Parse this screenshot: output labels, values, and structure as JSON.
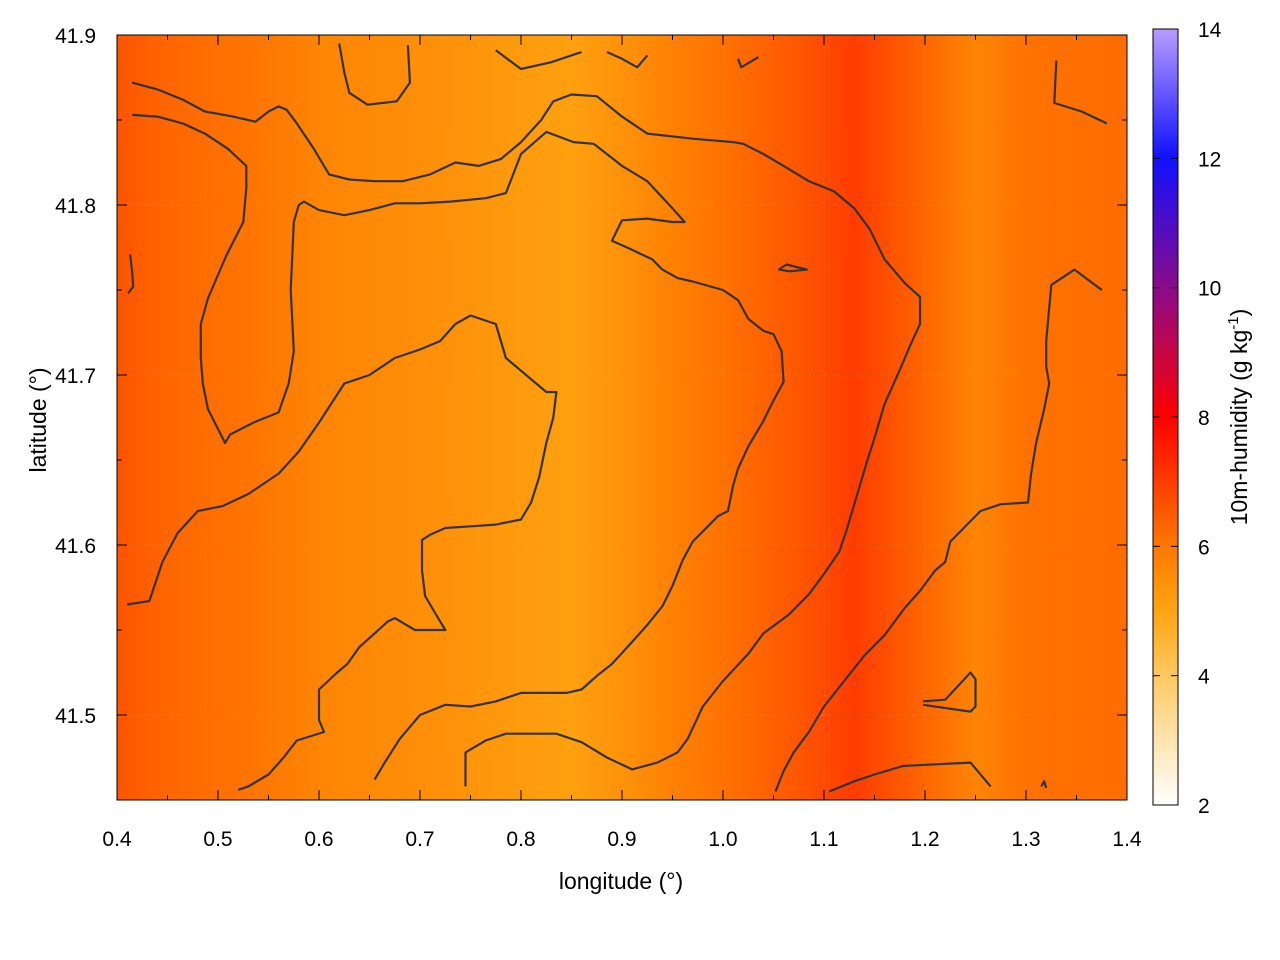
{
  "chart_data": {
    "type": "heatmap",
    "xlabel": "longitude (°)",
    "ylabel": "latitude (°)",
    "colorbar_label_base": "10m-humidity (g kg",
    "colorbar_label_sup": "-1",
    "colorbar_label_end": ")",
    "xlim": [
      0.4,
      1.4
    ],
    "ylim": [
      41.45,
      41.9
    ],
    "x_ticks": [
      "0.4",
      "0.5",
      "0.6",
      "0.7",
      "0.8",
      "0.9",
      "1.0",
      "1.1",
      "1.2",
      "1.3",
      "1.4"
    ],
    "y_ticks": [
      "41.5",
      "41.6",
      "41.7",
      "41.8",
      "41.9"
    ],
    "cb_ticks": [
      "2",
      "4",
      "6",
      "8",
      "10",
      "12",
      "14"
    ],
    "cb_range": [
      2,
      14
    ],
    "grid": true,
    "palette": [
      {
        "v": 2,
        "c": "#ffffff"
      },
      {
        "v": 4,
        "c": "#ffc860"
      },
      {
        "v": 5,
        "c": "#ffa410"
      },
      {
        "v": 6,
        "c": "#ff7800"
      },
      {
        "v": 8,
        "c": "#ff0000"
      },
      {
        "v": 10,
        "c": "#8a0b8a"
      },
      {
        "v": 12,
        "c": "#1010ff"
      },
      {
        "v": 14,
        "c": "#b89cff"
      }
    ],
    "field_bands": [
      {
        "x": 0.4,
        "v": 6.6
      },
      {
        "x": 0.45,
        "v": 6.3
      },
      {
        "x": 0.55,
        "v": 6.0
      },
      {
        "x": 0.6,
        "v": 5.7
      },
      {
        "x": 0.7,
        "v": 5.5
      },
      {
        "x": 0.8,
        "v": 5.2
      },
      {
        "x": 0.85,
        "v": 5.1
      },
      {
        "x": 0.9,
        "v": 5.4
      },
      {
        "x": 0.95,
        "v": 5.8
      },
      {
        "x": 1.0,
        "v": 6.1
      },
      {
        "x": 1.08,
        "v": 6.6
      },
      {
        "x": 1.13,
        "v": 7.0
      },
      {
        "x": 1.2,
        "v": 6.3
      },
      {
        "x": 1.25,
        "v": 5.7
      },
      {
        "x": 1.3,
        "v": 6.1
      },
      {
        "x": 1.4,
        "v": 6.2
      }
    ],
    "contours": [
      [
        [
          0.415,
          41.872
        ],
        [
          0.44,
          41.868
        ],
        [
          0.465,
          41.862
        ],
        [
          0.487,
          41.855
        ],
        [
          0.515,
          41.852
        ],
        [
          0.537,
          41.849
        ],
        [
          0.55,
          41.855
        ],
        [
          0.56,
          41.858
        ],
        [
          0.568,
          41.856
        ],
        [
          0.578,
          41.848
        ],
        [
          0.595,
          41.833
        ],
        [
          0.61,
          41.818
        ],
        [
          0.63,
          41.815
        ],
        [
          0.655,
          41.814
        ],
        [
          0.683,
          41.814
        ],
        [
          0.71,
          41.818
        ],
        [
          0.735,
          41.825
        ],
        [
          0.758,
          41.823
        ],
        [
          0.78,
          41.827
        ],
        [
          0.8,
          41.837
        ],
        [
          0.82,
          41.85
        ],
        [
          0.832,
          41.861
        ],
        [
          0.85,
          41.865
        ],
        [
          0.875,
          41.864
        ],
        [
          0.9,
          41.852
        ],
        [
          0.925,
          41.842
        ],
        [
          0.97,
          41.839
        ],
        [
          1.01,
          41.837
        ],
        [
          1.02,
          41.836
        ],
        [
          1.04,
          41.83
        ],
        [
          1.06,
          41.823
        ],
        [
          1.085,
          41.814
        ],
        [
          1.11,
          41.808
        ],
        [
          1.13,
          41.798
        ],
        [
          1.145,
          41.786
        ],
        [
          1.16,
          41.768
        ],
        [
          1.18,
          41.754
        ],
        [
          1.195,
          41.746
        ],
        [
          1.195,
          41.73
        ],
        [
          1.185,
          41.717
        ],
        [
          1.175,
          41.703
        ],
        [
          1.16,
          41.683
        ],
        [
          1.15,
          41.663
        ],
        [
          1.142,
          41.648
        ],
        [
          1.132,
          41.628
        ],
        [
          1.122,
          41.608
        ],
        [
          1.115,
          41.596
        ],
        [
          1.1,
          41.583
        ],
        [
          1.085,
          41.571
        ],
        [
          1.065,
          41.559
        ],
        [
          1.04,
          41.548
        ],
        [
          1.025,
          41.536
        ],
        [
          1.0,
          41.52
        ],
        [
          0.98,
          41.505
        ],
        [
          0.965,
          41.486
        ],
        [
          0.955,
          41.478
        ],
        [
          0.935,
          41.472
        ],
        [
          0.91,
          41.468
        ],
        [
          0.885,
          41.475
        ],
        [
          0.86,
          41.484
        ],
        [
          0.835,
          41.489
        ],
        [
          0.785,
          41.489
        ],
        [
          0.765,
          41.485
        ],
        [
          0.745,
          41.478
        ],
        [
          0.745,
          41.458
        ]
      ],
      [
        [
          0.415,
          41.853
        ],
        [
          0.44,
          41.852
        ],
        [
          0.465,
          41.848
        ],
        [
          0.487,
          41.842
        ],
        [
          0.51,
          41.833
        ],
        [
          0.528,
          41.823
        ],
        [
          0.528,
          41.81
        ],
        [
          0.525,
          41.79
        ],
        [
          0.508,
          41.77
        ],
        [
          0.49,
          41.745
        ],
        [
          0.483,
          41.73
        ],
        [
          0.483,
          41.71
        ],
        [
          0.485,
          41.695
        ],
        [
          0.49,
          41.68
        ],
        [
          0.507,
          41.66
        ],
        [
          0.512,
          41.665
        ],
        [
          0.535,
          41.672
        ],
        [
          0.56,
          41.678
        ],
        [
          0.57,
          41.695
        ],
        [
          0.575,
          41.714
        ],
        [
          0.572,
          41.75
        ],
        [
          0.575,
          41.79
        ],
        [
          0.58,
          41.8
        ],
        [
          0.585,
          41.802
        ],
        [
          0.6,
          41.797
        ],
        [
          0.625,
          41.794
        ],
        [
          0.65,
          41.797
        ],
        [
          0.675,
          41.801
        ],
        [
          0.7,
          41.801
        ],
        [
          0.73,
          41.802
        ],
        [
          0.765,
          41.804
        ],
        [
          0.785,
          41.807
        ],
        [
          0.8,
          41.83
        ],
        [
          0.825,
          41.843
        ],
        [
          0.852,
          41.837
        ],
        [
          0.872,
          41.836
        ],
        [
          0.9,
          41.823
        ],
        [
          0.925,
          41.814
        ],
        [
          0.95,
          41.798
        ],
        [
          0.962,
          41.79
        ],
        [
          0.95,
          41.79
        ],
        [
          0.925,
          41.792
        ],
        [
          0.9,
          41.791
        ],
        [
          0.89,
          41.779
        ],
        [
          0.905,
          41.775
        ],
        [
          0.93,
          41.768
        ],
        [
          0.94,
          41.762
        ],
        [
          0.955,
          41.757
        ],
        [
          0.97,
          41.755
        ],
        [
          1.0,
          41.75
        ],
        [
          1.015,
          41.744
        ],
        [
          1.025,
          41.733
        ],
        [
          1.04,
          41.726
        ],
        [
          1.05,
          41.724
        ],
        [
          1.058,
          41.714
        ],
        [
          1.06,
          41.696
        ],
        [
          1.05,
          41.685
        ],
        [
          1.04,
          41.673
        ],
        [
          1.025,
          41.658
        ],
        [
          1.015,
          41.645
        ],
        [
          1.01,
          41.635
        ],
        [
          1.005,
          41.62
        ],
        [
          0.995,
          41.617
        ],
        [
          0.985,
          41.611
        ],
        [
          0.97,
          41.602
        ],
        [
          0.96,
          41.591
        ],
        [
          0.95,
          41.576
        ],
        [
          0.94,
          41.564
        ],
        [
          0.925,
          41.553
        ],
        [
          0.91,
          41.543
        ],
        [
          0.89,
          41.53
        ],
        [
          0.875,
          41.523
        ],
        [
          0.86,
          41.515
        ],
        [
          0.845,
          41.513
        ],
        [
          0.8,
          41.513
        ],
        [
          0.775,
          41.508
        ],
        [
          0.75,
          41.505
        ],
        [
          0.725,
          41.506
        ],
        [
          0.7,
          41.5
        ],
        [
          0.68,
          41.486
        ],
        [
          0.665,
          41.472
        ],
        [
          0.655,
          41.462
        ]
      ],
      [
        [
          0.41,
          41.565
        ],
        [
          0.432,
          41.567
        ],
        [
          0.445,
          41.59
        ],
        [
          0.46,
          41.607
        ],
        [
          0.48,
          41.62
        ],
        [
          0.505,
          41.623
        ],
        [
          0.53,
          41.63
        ],
        [
          0.56,
          41.642
        ],
        [
          0.58,
          41.655
        ],
        [
          0.6,
          41.672
        ],
        [
          0.625,
          41.695
        ],
        [
          0.65,
          41.7
        ],
        [
          0.675,
          41.71
        ],
        [
          0.7,
          41.715
        ],
        [
          0.72,
          41.72
        ],
        [
          0.735,
          41.73
        ],
        [
          0.75,
          41.735
        ],
        [
          0.775,
          41.73
        ],
        [
          0.785,
          41.71
        ],
        [
          0.805,
          41.7
        ],
        [
          0.825,
          41.69
        ],
        [
          0.835,
          41.69
        ],
        [
          0.832,
          41.675
        ],
        [
          0.825,
          41.66
        ],
        [
          0.818,
          41.64
        ],
        [
          0.81,
          41.625
        ],
        [
          0.8,
          41.615
        ],
        [
          0.775,
          41.612
        ],
        [
          0.75,
          41.611
        ],
        [
          0.725,
          41.61
        ],
        [
          0.71,
          41.606
        ],
        [
          0.702,
          41.603
        ],
        [
          0.702,
          41.585
        ],
        [
          0.705,
          41.57
        ],
        [
          0.715,
          41.56
        ],
        [
          0.725,
          41.55
        ],
        [
          0.71,
          41.55
        ],
        [
          0.695,
          41.55
        ],
        [
          0.675,
          41.557
        ],
        [
          0.668,
          41.555
        ],
        [
          0.655,
          41.548
        ],
        [
          0.64,
          41.54
        ],
        [
          0.628,
          41.53
        ],
        [
          0.618,
          41.525
        ],
        [
          0.6,
          41.515
        ],
        [
          0.6,
          41.497
        ],
        [
          0.605,
          41.49
        ],
        [
          0.578,
          41.485
        ],
        [
          0.565,
          41.475
        ],
        [
          0.55,
          41.465
        ],
        [
          0.53,
          41.458
        ],
        [
          0.52,
          41.456
        ]
      ],
      [
        [
          0.62,
          41.895
        ],
        [
          0.625,
          41.878
        ],
        [
          0.63,
          41.866
        ],
        [
          0.648,
          41.859
        ],
        [
          0.677,
          41.861
        ],
        [
          0.69,
          41.872
        ],
        [
          0.688,
          41.894
        ]
      ],
      [
        [
          0.775,
          41.891
        ],
        [
          0.8,
          41.88
        ],
        [
          0.83,
          41.884
        ],
        [
          0.855,
          41.889
        ],
        [
          0.86,
          41.89
        ]
      ],
      [
        [
          0.885,
          41.89
        ],
        [
          0.9,
          41.886
        ],
        [
          0.915,
          41.881
        ],
        [
          0.925,
          41.888
        ]
      ],
      [
        [
          1.015,
          41.886
        ],
        [
          1.018,
          41.881
        ],
        [
          1.035,
          41.887
        ]
      ],
      [
        [
          1.055,
          41.762
        ],
        [
          1.063,
          41.765
        ],
        [
          1.083,
          41.762
        ],
        [
          1.066,
          41.761
        ],
        [
          1.055,
          41.762
        ]
      ],
      [
        [
          0.413,
          41.771
        ],
        [
          0.415,
          41.761
        ],
        [
          0.416,
          41.752
        ],
        [
          0.411,
          41.748
        ]
      ],
      [
        [
          1.33,
          41.885
        ],
        [
          1.328,
          41.86
        ],
        [
          1.355,
          41.855
        ],
        [
          1.38,
          41.848
        ]
      ],
      [
        [
          1.375,
          41.75
        ],
        [
          1.348,
          41.762
        ],
        [
          1.325,
          41.753
        ],
        [
          1.322,
          41.733
        ],
        [
          1.32,
          41.72
        ],
        [
          1.32,
          41.705
        ],
        [
          1.323,
          41.695
        ],
        [
          1.318,
          41.68
        ],
        [
          1.31,
          41.66
        ],
        [
          1.305,
          41.642
        ],
        [
          1.302,
          41.625
        ],
        [
          1.275,
          41.624
        ],
        [
          1.255,
          41.62
        ],
        [
          1.235,
          41.608
        ],
        [
          1.225,
          41.602
        ],
        [
          1.22,
          41.59
        ],
        [
          1.21,
          41.585
        ],
        [
          1.195,
          41.573
        ],
        [
          1.18,
          41.563
        ],
        [
          1.16,
          41.547
        ],
        [
          1.14,
          41.535
        ],
        [
          1.12,
          41.52
        ],
        [
          1.1,
          41.505
        ],
        [
          1.085,
          41.49
        ],
        [
          1.07,
          41.478
        ],
        [
          1.06,
          41.467
        ],
        [
          1.052,
          41.455
        ]
      ],
      [
        [
          1.198,
          41.508
        ],
        [
          1.22,
          41.509
        ],
        [
          1.245,
          41.525
        ],
        [
          1.25,
          41.521
        ],
        [
          1.25,
          41.505
        ],
        [
          1.245,
          41.502
        ],
        [
          1.198,
          41.506
        ]
      ],
      [
        [
          1.105,
          41.455
        ],
        [
          1.13,
          41.461
        ],
        [
          1.15,
          41.465
        ],
        [
          1.178,
          41.47
        ],
        [
          1.21,
          41.471
        ],
        [
          1.245,
          41.472
        ],
        [
          1.265,
          41.458
        ]
      ],
      [
        [
          1.315,
          41.458
        ],
        [
          1.318,
          41.461
        ],
        [
          1.32,
          41.457
        ]
      ]
    ]
  }
}
